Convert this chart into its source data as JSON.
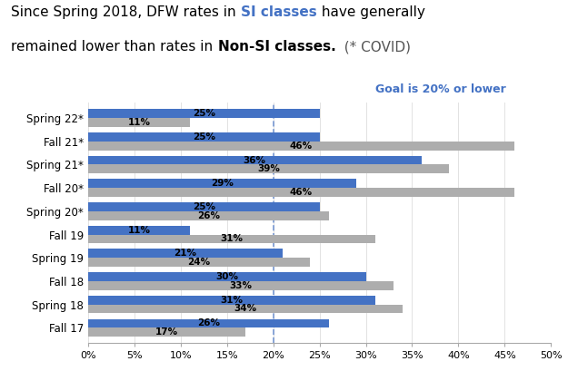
{
  "categories": [
    "Spring 22*",
    "Fall 21*",
    "Spring 21*",
    "Fall 20*",
    "Spring 20*",
    "Fall 19",
    "Spring 19",
    "Fall 18",
    "Spring 18",
    "Fall 17"
  ],
  "si_values": [
    25,
    25,
    36,
    29,
    25,
    11,
    21,
    30,
    31,
    26
  ],
  "non_si_values": [
    11,
    46,
    39,
    46,
    26,
    31,
    24,
    33,
    34,
    17
  ],
  "si_color": "#4472C4",
  "non_si_color": "#ADADAD",
  "goal_text": "Goal is 20% or lower",
  "goal_color": "#4472C4",
  "dashed_line_x": 20,
  "xlim": [
    0,
    50
  ],
  "xticks": [
    0,
    5,
    10,
    15,
    20,
    25,
    30,
    35,
    40,
    45,
    50
  ],
  "xtick_labels": [
    "0%",
    "5%",
    "10%",
    "15%",
    "20%",
    "25%",
    "30%",
    "35%",
    "40%",
    "45%",
    "50%"
  ],
  "bar_height": 0.38,
  "figsize": [
    6.25,
    4.2
  ],
  "dpi": 100,
  "title_fontsize": 11,
  "label_fontsize": 7.5,
  "ytick_fontsize": 8.5,
  "xtick_fontsize": 8
}
